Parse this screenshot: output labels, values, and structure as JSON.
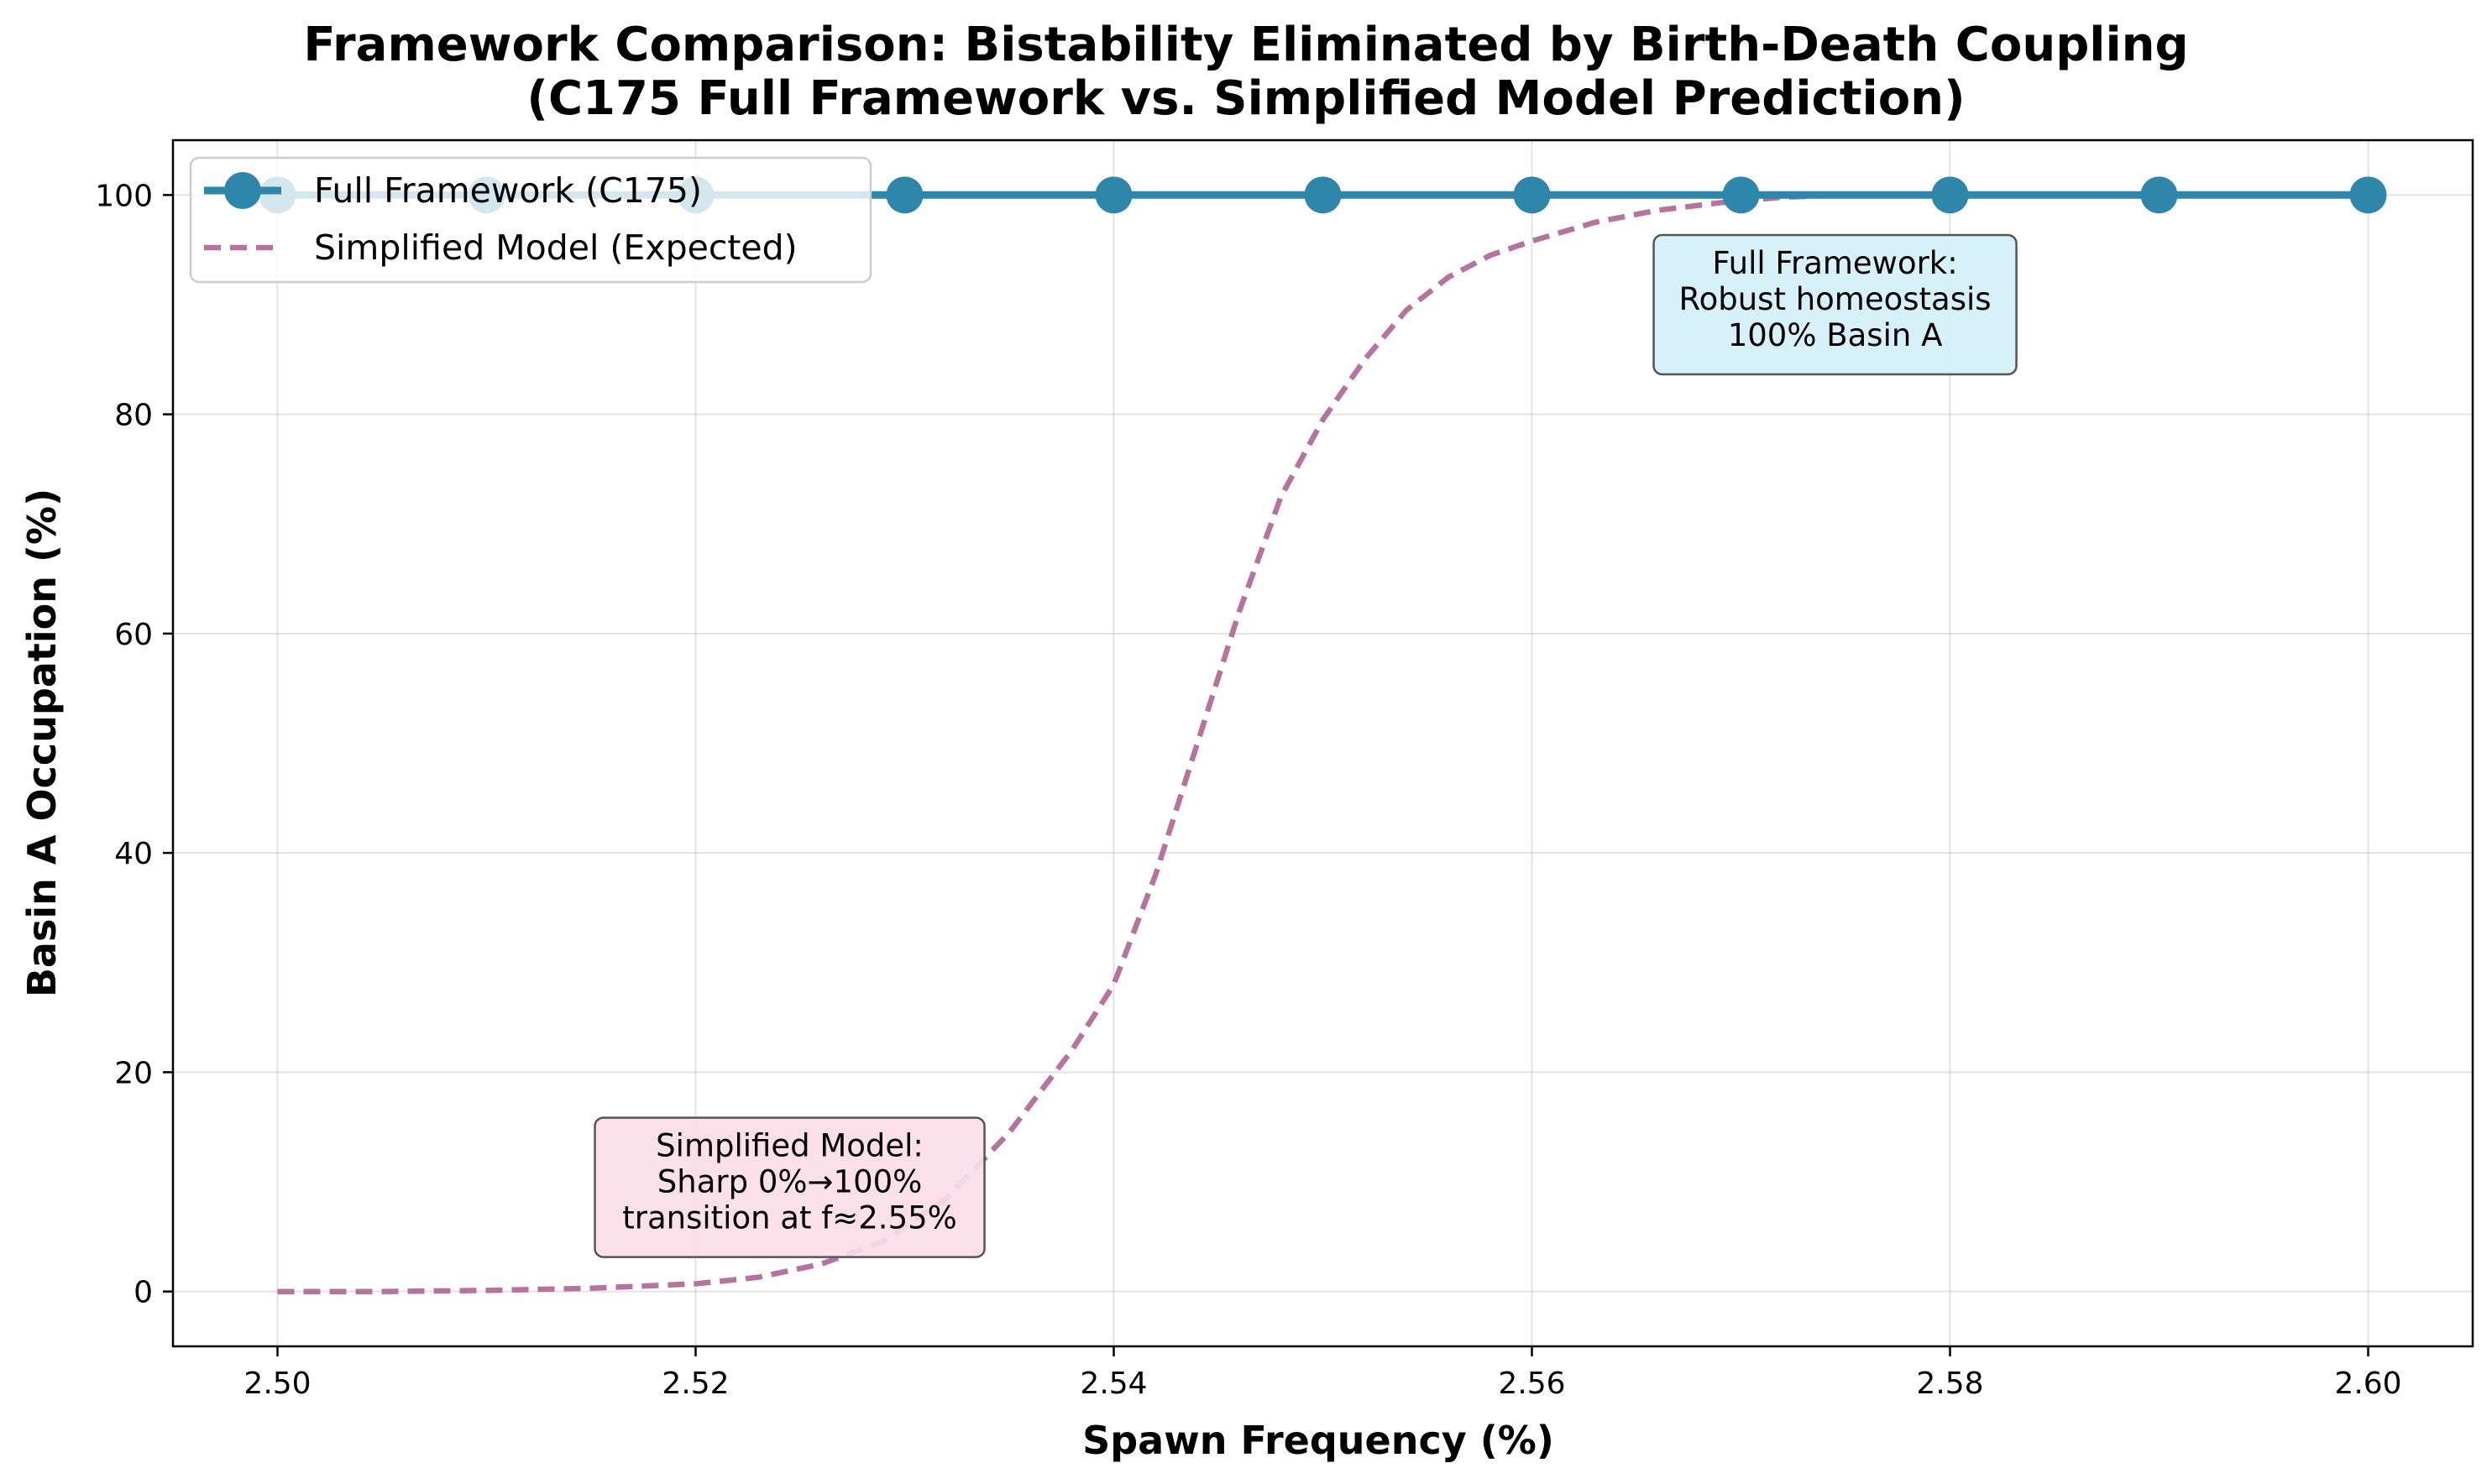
{
  "chart_data": {
    "type": "line",
    "title": [
      "Framework Comparison: Bistability Eliminated by Birth-Death Coupling",
      "(C175 Full Framework vs. Simplified Model Prediction)"
    ],
    "xlabel": "Spawn Frequency (%)",
    "ylabel": "Basin A Occupation (%)",
    "xlim": [
      2.495,
      2.605
    ],
    "ylim": [
      -5,
      105
    ],
    "xticks": [
      2.5,
      2.52,
      2.54,
      2.56,
      2.58,
      2.6
    ],
    "xtick_labels": [
      "2.50",
      "2.52",
      "2.54",
      "2.56",
      "2.58",
      "2.60"
    ],
    "yticks": [
      0,
      20,
      40,
      60,
      80,
      100
    ],
    "ytick_labels": [
      "0",
      "20",
      "40",
      "60",
      "80",
      "100"
    ],
    "grid": true,
    "legend_position": "top-left",
    "series": [
      {
        "name": "Full Framework (C175)",
        "style": "solid-markers",
        "color": "#2e86ab",
        "x": [
          2.5,
          2.51,
          2.52,
          2.53,
          2.54,
          2.55,
          2.56,
          2.57,
          2.58,
          2.59,
          2.6
        ],
        "y": [
          100,
          100,
          100,
          100,
          100,
          100,
          100,
          100,
          100,
          100,
          100
        ]
      },
      {
        "name": "Simplified Model (Expected)",
        "style": "dashed",
        "color": "#b5739d",
        "x": [
          2.5,
          2.505,
          2.51,
          2.515,
          2.52,
          2.523,
          2.526,
          2.529,
          2.532,
          2.535,
          2.538,
          2.54,
          2.542,
          2.544,
          2.546,
          2.548,
          2.55,
          2.552,
          2.554,
          2.556,
          2.558,
          2.56,
          2.563,
          2.566,
          2.569,
          2.572,
          2.575
        ],
        "y": [
          0.0,
          0.0,
          0.1,
          0.3,
          0.7,
          1.3,
          2.5,
          4.6,
          8.5,
          14.5,
          22.0,
          28.0,
          38.0,
          50.0,
          62.0,
          72.5,
          79.5,
          85.0,
          89.5,
          92.5,
          94.5,
          95.8,
          97.5,
          98.6,
          99.3,
          99.8,
          100.0
        ]
      }
    ],
    "annotations": [
      {
        "lines": [
          "Full Framework:",
          "Robust homeostasis",
          "100% Basin A"
        ],
        "x": 2.5745,
        "y": 90,
        "facecolor": "#d2f0f7"
      },
      {
        "lines": [
          "Simplified Model:",
          "Sharp 0%→100%",
          "transition at f≈2.55%"
        ],
        "x": 2.5245,
        "y": 9.5,
        "facecolor": "#fbdde8"
      }
    ]
  }
}
